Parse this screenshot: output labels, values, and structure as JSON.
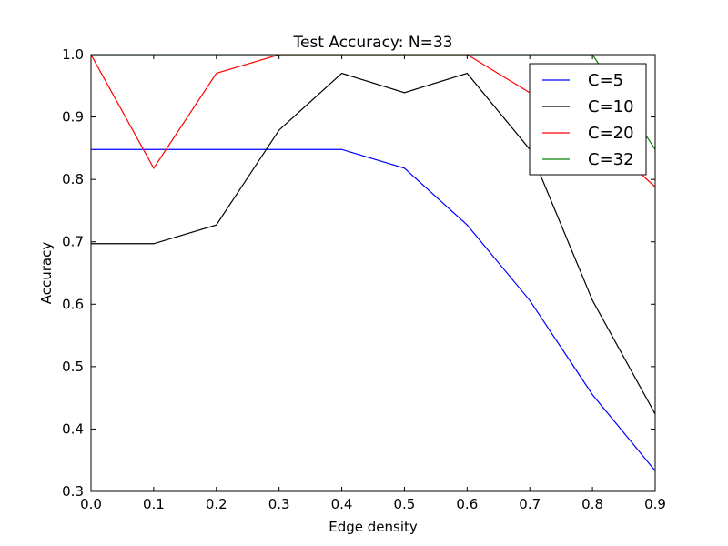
{
  "chart_data": {
    "type": "line",
    "title": "Test Accuracy: N=33",
    "xlabel": "Edge density",
    "ylabel": "Accuracy",
    "xlim": [
      0.0,
      0.9
    ],
    "ylim": [
      0.3,
      1.0
    ],
    "x": [
      0.0,
      0.1,
      0.2,
      0.3,
      0.4,
      0.5,
      0.6,
      0.7,
      0.8,
      0.9
    ],
    "xticks": [
      "0.0",
      "0.1",
      "0.2",
      "0.3",
      "0.4",
      "0.5",
      "0.6",
      "0.7",
      "0.8",
      "0.9"
    ],
    "yticks": [
      "0.3",
      "0.4",
      "0.5",
      "0.6",
      "0.7",
      "0.8",
      "0.9",
      "1.0"
    ],
    "grid": false,
    "legend_position": "top-right",
    "series": [
      {
        "name": "C=5",
        "color": "#0000ff",
        "values": [
          0.848,
          0.848,
          0.848,
          0.848,
          0.848,
          0.818,
          0.727,
          0.606,
          0.455,
          0.333
        ]
      },
      {
        "name": "C=10",
        "color": "#000000",
        "values": [
          0.697,
          0.697,
          0.727,
          0.879,
          0.97,
          0.939,
          0.97,
          0.848,
          0.606,
          0.424
        ]
      },
      {
        "name": "C=20",
        "color": "#ff0000",
        "values": [
          1.0,
          0.818,
          0.97,
          1.0,
          1.0,
          1.0,
          1.0,
          0.939,
          0.879,
          0.788
        ]
      },
      {
        "name": "C=32",
        "color": "#008000",
        "values": [
          1.0,
          1.0,
          1.0,
          1.0,
          1.0,
          1.0,
          1.0,
          1.0,
          1.0,
          0.848
        ]
      }
    ]
  }
}
